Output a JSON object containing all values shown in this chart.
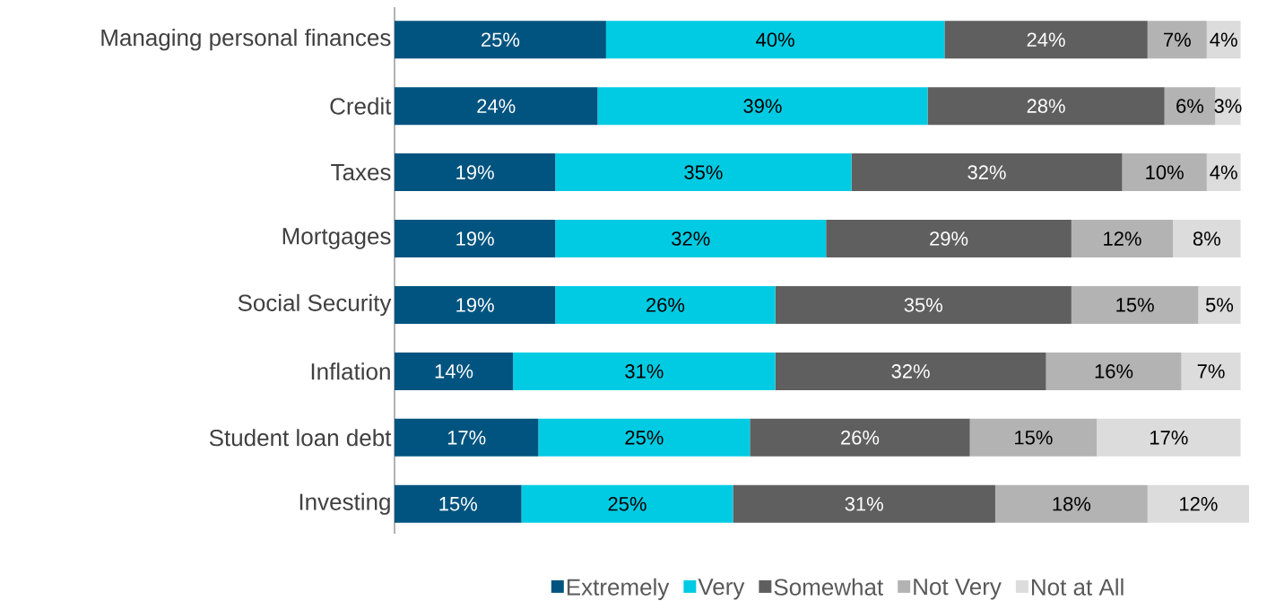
{
  "chart_data": {
    "type": "bar",
    "orientation": "horizontal",
    "stacked": true,
    "legend": "bottom",
    "categories": [
      "Managing personal finances",
      "Credit",
      "Taxes",
      "Mortgages",
      "Social Security",
      "Inflation",
      "Student loan debt",
      "Investing"
    ],
    "series": [
      {
        "name": "Extremely",
        "color": "#00547f",
        "values": [
          25,
          24,
          19,
          19,
          19,
          14,
          17,
          15
        ],
        "value_labels": [
          "25%",
          "24%",
          "19%",
          "19%",
          "19%",
          "14%",
          "17%",
          "15%"
        ]
      },
      {
        "name": "Very",
        "color": "#00cbe3",
        "values": [
          40,
          39,
          35,
          32,
          26,
          31,
          25,
          25
        ],
        "value_labels": [
          "40%",
          "39%",
          "35%",
          "32%",
          "26%",
          "31%",
          "25%",
          "25%"
        ]
      },
      {
        "name": "Somewhat",
        "color": "#5f5f5f",
        "values": [
          24,
          28,
          32,
          29,
          35,
          32,
          26,
          31
        ],
        "value_labels": [
          "24%",
          "28%",
          "32%",
          "29%",
          "35%",
          "32%",
          "26%",
          "31%"
        ]
      },
      {
        "name": "Not Very",
        "color": "#b3b3b3",
        "values": [
          7,
          6,
          10,
          12,
          15,
          16,
          15,
          18
        ],
        "value_labels": [
          "7%",
          "6%",
          "10%",
          "12%",
          "15%",
          "16%",
          "15%",
          "18%"
        ]
      },
      {
        "name": "Not at All",
        "color": "#dcdcdc",
        "values": [
          4,
          3,
          4,
          8,
          5,
          7,
          17,
          12
        ],
        "value_labels": [
          "4%",
          "3%",
          "4%",
          "8%",
          "5%",
          "7%",
          "17%",
          "12%"
        ]
      }
    ]
  }
}
